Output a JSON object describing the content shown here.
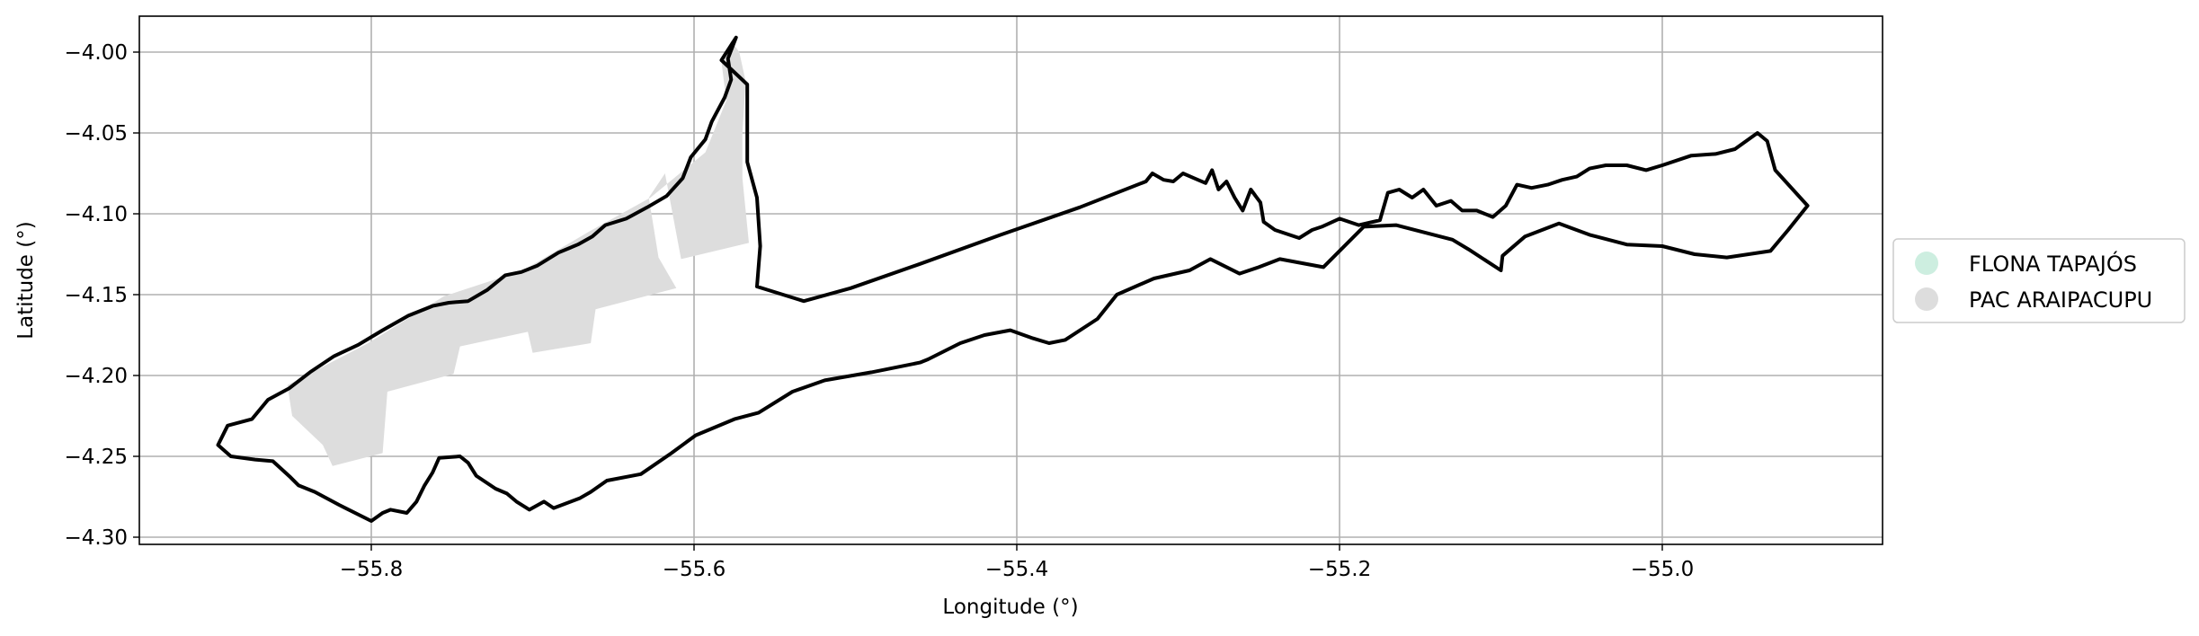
{
  "chart_data": {
    "type": "map",
    "xlabel": "Longitude (°)",
    "ylabel": "Latitude (°)",
    "xlim": [
      -55.955,
      -55.417
    ],
    "ylim": [
      -4.308,
      -3.978
    ],
    "xlim_full": [
      -55.955,
      -54.85
    ],
    "x_ticks": [
      -55.8,
      -55.6,
      -55.4,
      -55.2,
      -55.0
    ],
    "x_tick_labels": [
      "−55.8",
      "−55.6",
      "−55.4",
      "−55.2",
      "−55.0"
    ],
    "y_ticks": [
      -4.0,
      -4.05,
      -4.1,
      -4.15,
      -4.2,
      -4.25,
      -4.3
    ],
    "y_tick_labels": [
      "−4.00",
      "−4.05",
      "−4.10",
      "−4.15",
      "−4.20",
      "−4.25",
      "−4.30"
    ],
    "grid": true,
    "legend_position": "right",
    "legend": [
      {
        "label": "FLONA TAPAJÓS",
        "color": "#cdeee0"
      },
      {
        "label": "PAC ARAIPACUPU",
        "color": "#dddddd"
      }
    ],
    "colors": {
      "outline": "#000000",
      "pac_fill": "#dddddd",
      "flona_fill": "#cdeee0",
      "grid": "#b0b0b0"
    },
    "pac_polygon": [
      [
        -55.577,
        -3.993
      ],
      [
        -55.572,
        -4.0
      ],
      [
        -55.568,
        -4.018
      ],
      [
        -55.57,
        -4.05
      ],
      [
        -55.57,
        -4.078
      ],
      [
        -55.566,
        -4.118
      ],
      [
        -55.608,
        -4.128
      ],
      [
        -55.618,
        -4.075
      ],
      [
        -55.628,
        -4.09
      ],
      [
        -55.622,
        -4.127
      ],
      [
        -55.611,
        -4.146
      ],
      [
        -55.661,
        -4.159
      ],
      [
        -55.664,
        -4.18
      ],
      [
        -55.7,
        -4.186
      ],
      [
        -55.703,
        -4.173
      ],
      [
        -55.745,
        -4.182
      ],
      [
        -55.749,
        -4.199
      ],
      [
        -55.79,
        -4.21
      ],
      [
        -55.793,
        -4.248
      ],
      [
        -55.824,
        -4.256
      ],
      [
        -55.83,
        -4.243
      ],
      [
        -55.849,
        -4.225
      ],
      [
        -55.852,
        -4.206
      ],
      [
        -55.802,
        -4.18
      ],
      [
        -55.755,
        -4.151
      ],
      [
        -55.706,
        -4.135
      ],
      [
        -55.665,
        -4.111
      ],
      [
        -55.627,
        -4.09
      ],
      [
        -55.593,
        -4.062
      ],
      [
        -55.58,
        -4.03
      ],
      [
        -55.583,
        -4.006
      ]
    ],
    "boundary": [
      [
        -55.574,
        -3.991
      ],
      [
        -55.583,
        -4.005
      ],
      [
        -55.567,
        -4.02
      ],
      [
        -55.567,
        -4.05
      ],
      [
        -55.567,
        -4.068
      ],
      [
        -55.561,
        -4.09
      ],
      [
        -55.559,
        -4.12
      ],
      [
        -55.561,
        -4.145
      ],
      [
        -55.532,
        -4.154
      ],
      [
        -55.503,
        -4.146
      ],
      [
        -55.46,
        -4.131
      ],
      [
        -55.41,
        -4.113
      ],
      [
        -55.361,
        -4.096
      ],
      [
        -55.32,
        -4.08
      ],
      [
        -55.316,
        -4.075
      ],
      [
        -55.309,
        -4.079
      ],
      [
        -55.303,
        -4.08
      ],
      [
        -55.297,
        -4.075
      ],
      [
        -55.29,
        -4.078
      ],
      [
        -55.283,
        -4.081
      ],
      [
        -55.279,
        -4.073
      ],
      [
        -55.275,
        -4.085
      ],
      [
        -55.27,
        -4.08
      ],
      [
        -55.265,
        -4.09
      ],
      [
        -55.26,
        -4.098
      ],
      [
        -55.255,
        -4.085
      ],
      [
        -55.249,
        -4.093
      ],
      [
        -55.247,
        -4.105
      ],
      [
        -55.24,
        -4.11
      ],
      [
        -55.225,
        -4.115
      ],
      [
        -55.217,
        -4.11
      ],
      [
        -55.211,
        -4.108
      ],
      [
        -55.2,
        -4.103
      ],
      [
        -55.188,
        -4.107
      ],
      [
        -55.175,
        -4.104
      ],
      [
        -55.17,
        -4.087
      ],
      [
        -55.163,
        -4.085
      ],
      [
        -55.155,
        -4.09
      ],
      [
        -55.148,
        -4.085
      ],
      [
        -55.14,
        -4.095
      ],
      [
        -55.131,
        -4.092
      ],
      [
        -55.124,
        -4.098
      ],
      [
        -55.115,
        -4.098
      ],
      [
        -55.105,
        -4.102
      ],
      [
        -55.097,
        -4.095
      ],
      [
        -55.09,
        -4.082
      ],
      [
        -55.081,
        -4.084
      ],
      [
        -55.071,
        -4.082
      ],
      [
        -55.062,
        -4.079
      ],
      [
        -55.053,
        -4.077
      ],
      [
        -55.045,
        -4.072
      ],
      [
        -55.035,
        -4.07
      ],
      [
        -55.022,
        -4.07
      ],
      [
        -55.01,
        -4.073
      ],
      [
        -55.0,
        -4.07
      ],
      [
        -54.982,
        -4.064
      ],
      [
        -54.967,
        -4.063
      ],
      [
        -54.955,
        -4.06
      ],
      [
        -54.941,
        -4.05
      ],
      [
        -54.935,
        -4.055
      ],
      [
        -54.93,
        -4.073
      ],
      [
        -54.91,
        -4.095
      ],
      [
        -54.922,
        -4.11
      ],
      [
        -54.933,
        -4.123
      ],
      [
        -54.96,
        -4.127
      ],
      [
        -54.98,
        -4.125
      ],
      [
        -55.0,
        -4.12
      ],
      [
        -55.022,
        -4.119
      ],
      [
        -55.045,
        -4.113
      ],
      [
        -55.064,
        -4.106
      ],
      [
        -55.085,
        -4.114
      ],
      [
        -55.099,
        -4.126
      ],
      [
        -55.1,
        -4.135
      ],
      [
        -55.12,
        -4.122
      ],
      [
        -55.13,
        -4.116
      ],
      [
        -55.165,
        -4.107
      ],
      [
        -55.185,
        -4.108
      ],
      [
        -55.21,
        -4.133
      ],
      [
        -55.237,
        -4.128
      ],
      [
        -55.25,
        -4.133
      ],
      [
        -55.262,
        -4.137
      ],
      [
        -55.28,
        -4.128
      ],
      [
        -55.293,
        -4.135
      ],
      [
        -55.315,
        -4.14
      ],
      [
        -55.338,
        -4.15
      ],
      [
        -55.35,
        -4.165
      ],
      [
        -55.37,
        -4.178
      ],
      [
        -55.38,
        -4.18
      ],
      [
        -55.39,
        -4.177
      ],
      [
        -55.404,
        -4.172
      ],
      [
        -55.42,
        -4.175
      ],
      [
        -55.435,
        -4.18
      ],
      [
        -55.455,
        -4.19
      ],
      [
        -55.46,
        -4.192
      ],
      [
        -55.49,
        -4.198
      ],
      [
        -55.519,
        -4.203
      ],
      [
        -55.539,
        -4.21
      ],
      [
        -55.56,
        -4.223
      ],
      [
        -55.575,
        -4.227
      ],
      [
        -55.599,
        -4.237
      ],
      [
        -55.614,
        -4.248
      ],
      [
        -55.633,
        -4.261
      ],
      [
        -55.654,
        -4.265
      ],
      [
        -55.664,
        -4.272
      ],
      [
        -55.671,
        -4.276
      ],
      [
        -55.687,
        -4.282
      ],
      [
        -55.693,
        -4.278
      ],
      [
        -55.702,
        -4.283
      ],
      [
        -55.71,
        -4.278
      ],
      [
        -55.716,
        -4.273
      ],
      [
        -55.723,
        -4.27
      ],
      [
        -55.735,
        -4.262
      ],
      [
        -55.74,
        -4.254
      ],
      [
        -55.745,
        -4.25
      ],
      [
        -55.758,
        -4.251
      ],
      [
        -55.762,
        -4.26
      ],
      [
        -55.767,
        -4.268
      ],
      [
        -55.772,
        -4.278
      ],
      [
        -55.778,
        -4.285
      ],
      [
        -55.788,
        -4.283
      ],
      [
        -55.793,
        -4.285
      ],
      [
        -55.8,
        -4.29
      ],
      [
        -55.82,
        -4.28
      ],
      [
        -55.835,
        -4.272
      ],
      [
        -55.845,
        -4.268
      ],
      [
        -55.85,
        -4.263
      ],
      [
        -55.861,
        -4.253
      ],
      [
        -55.872,
        -4.252
      ],
      [
        -55.887,
        -4.25
      ],
      [
        -55.895,
        -4.243
      ],
      [
        -55.889,
        -4.231
      ],
      [
        -55.874,
        -4.227
      ],
      [
        -55.864,
        -4.215
      ],
      [
        -55.851,
        -4.208
      ],
      [
        -55.838,
        -4.198
      ],
      [
        -55.823,
        -4.188
      ],
      [
        -55.808,
        -4.181
      ],
      [
        -55.793,
        -4.172
      ],
      [
        -55.777,
        -4.163
      ],
      [
        -55.762,
        -4.157
      ],
      [
        -55.752,
        -4.155
      ],
      [
        -55.74,
        -4.154
      ],
      [
        -55.728,
        -4.147
      ],
      [
        -55.717,
        -4.138
      ],
      [
        -55.707,
        -4.136
      ],
      [
        -55.697,
        -4.132
      ],
      [
        -55.684,
        -4.124
      ],
      [
        -55.672,
        -4.119
      ],
      [
        -55.663,
        -4.114
      ],
      [
        -55.655,
        -4.107
      ],
      [
        -55.642,
        -4.103
      ],
      [
        -55.629,
        -4.096
      ],
      [
        -55.617,
        -4.089
      ],
      [
        -55.607,
        -4.078
      ],
      [
        -55.602,
        -4.065
      ],
      [
        -55.593,
        -4.054
      ],
      [
        -55.589,
        -4.043
      ],
      [
        -55.581,
        -4.028
      ],
      [
        -55.577,
        -4.017
      ],
      [
        -55.579,
        -4.004
      ],
      [
        -55.574,
        -3.991
      ]
    ]
  }
}
